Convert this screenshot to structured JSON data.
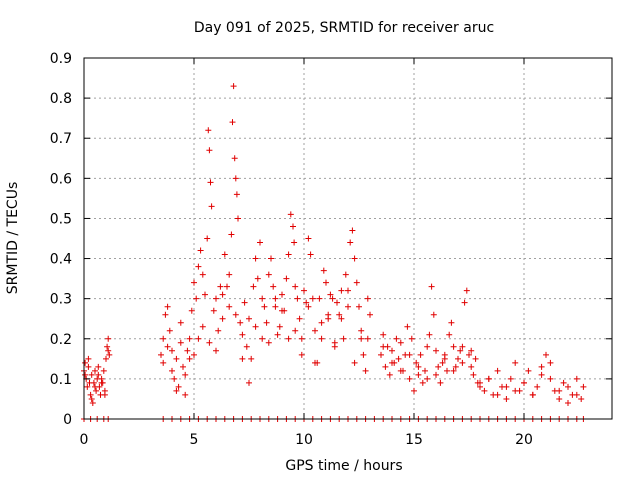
{
  "chart_data": {
    "type": "scatter",
    "title": "Day 091 of 2025, SRMTID for receiver aruc",
    "xlabel": "GPS time / hours",
    "ylabel": "SRMTID / TECUs",
    "xlim": [
      0,
      24
    ],
    "ylim": [
      0,
      0.9
    ],
    "xticks": [
      0,
      5,
      10,
      15,
      20
    ],
    "yticks": [
      0,
      0.1,
      0.2,
      0.3,
      0.4,
      0.5,
      0.6,
      0.7,
      0.8,
      0.9
    ],
    "xtick_labels": [
      "0",
      "5",
      "10",
      "15",
      "20"
    ],
    "ytick_labels": [
      "0",
      "0.1",
      "0.2",
      "0.3",
      "0.4",
      "0.5",
      "0.6",
      "0.7",
      "0.8",
      "0.9"
    ],
    "grid": true,
    "marker": "+",
    "color": "#e00000",
    "series": [
      {
        "name": "SRMTID",
        "x": [
          0.0,
          0.05,
          0.1,
          0.15,
          0.2,
          0.25,
          0.3,
          0.35,
          0.4,
          0.45,
          0.5,
          0.55,
          0.6,
          0.65,
          0.7,
          0.75,
          0.8,
          0.85,
          0.9,
          0.95,
          1.0,
          1.05,
          1.1,
          1.15,
          0.05,
          0.2,
          0.35,
          0.5,
          0.65,
          0.8,
          0.95,
          1.1,
          3.5,
          3.6,
          3.7,
          3.8,
          3.9,
          4.0,
          4.1,
          4.2,
          4.3,
          4.4,
          4.5,
          4.6,
          4.7,
          4.8,
          4.9,
          5.0,
          5.1,
          5.2,
          5.3,
          5.4,
          5.5,
          5.6,
          5.65,
          5.7,
          5.75,
          5.8,
          5.9,
          6.0,
          6.1,
          6.2,
          6.3,
          6.4,
          6.5,
          6.6,
          6.7,
          6.75,
          6.8,
          6.85,
          6.9,
          6.95,
          7.0,
          7.1,
          7.2,
          7.3,
          7.4,
          7.5,
          7.6,
          7.7,
          7.8,
          7.9,
          8.0,
          8.1,
          8.2,
          8.3,
          8.4,
          8.5,
          8.6,
          8.7,
          8.8,
          8.9,
          9.0,
          9.1,
          9.2,
          9.3,
          9.4,
          9.5,
          9.55,
          9.6,
          9.7,
          9.8,
          9.9,
          10.0,
          10.1,
          10.2,
          10.3,
          10.4,
          10.5,
          10.6,
          10.7,
          10.8,
          10.9,
          11.0,
          11.1,
          11.2,
          11.3,
          11.4,
          11.5,
          11.6,
          11.7,
          11.8,
          11.9,
          12.0,
          12.1,
          12.2,
          12.3,
          12.4,
          12.5,
          12.6,
          12.7,
          12.8,
          12.9,
          13.0,
          3.6,
          3.8,
          4.0,
          4.2,
          4.4,
          4.6,
          4.8,
          5.0,
          5.2,
          5.4,
          5.7,
          6.0,
          6.3,
          6.6,
          6.9,
          7.2,
          7.5,
          7.8,
          8.1,
          8.4,
          8.7,
          9.0,
          9.3,
          9.6,
          9.9,
          10.2,
          10.5,
          10.8,
          11.1,
          11.4,
          11.7,
          12.0,
          12.3,
          12.6,
          12.9,
          13.5,
          13.6,
          13.7,
          13.8,
          13.9,
          14.0,
          14.1,
          14.2,
          14.3,
          14.4,
          14.5,
          14.6,
          14.7,
          14.8,
          14.9,
          15.0,
          15.1,
          15.2,
          15.3,
          15.4,
          15.5,
          15.6,
          15.7,
          15.8,
          15.9,
          16.0,
          16.1,
          16.2,
          16.3,
          16.4,
          16.5,
          16.6,
          16.7,
          16.8,
          16.9,
          17.0,
          17.1,
          17.2,
          17.3,
          17.4,
          17.5,
          17.6,
          17.7,
          17.8,
          17.9,
          18.0,
          18.2,
          18.4,
          18.6,
          18.8,
          19.0,
          19.2,
          19.4,
          19.6,
          19.8,
          20.0,
          20.2,
          20.4,
          20.6,
          20.8,
          21.0,
          21.2,
          21.4,
          21.6,
          21.8,
          22.0,
          22.2,
          22.4,
          22.6,
          22.7,
          13.6,
          14.0,
          14.4,
          14.8,
          15.2,
          15.6,
          16.0,
          16.4,
          16.8,
          17.2,
          17.6,
          18.0,
          18.4,
          18.8,
          19.2,
          19.6,
          20.0,
          20.4,
          20.8,
          21.2,
          21.6,
          22.0,
          22.4,
          0.0,
          0.3,
          0.6,
          0.9,
          1.1,
          3.6,
          4.0,
          4.4,
          4.8,
          5.2,
          5.6,
          6.0,
          6.4,
          6.8,
          7.2,
          7.6,
          8.0,
          8.4,
          8.8,
          9.2,
          9.6,
          10.0,
          10.4,
          10.8,
          11.2,
          11.6,
          12.0,
          12.4,
          12.8,
          13.2,
          13.6,
          14.0,
          14.4,
          14.8,
          15.2,
          15.6,
          16.0,
          16.4,
          16.8,
          17.2,
          17.6,
          18.0,
          18.4,
          18.8,
          19.2,
          19.6,
          20.0,
          20.4,
          20.8,
          21.2,
          21.6,
          22.0,
          22.4,
          22.7
        ],
        "y": [
          0.12,
          0.14,
          0.1,
          0.08,
          0.15,
          0.09,
          0.06,
          0.11,
          0.04,
          0.09,
          0.12,
          0.07,
          0.1,
          0.13,
          0.08,
          0.06,
          0.1,
          0.09,
          0.12,
          0.07,
          0.15,
          0.18,
          0.2,
          0.16,
          0.11,
          0.13,
          0.05,
          0.08,
          0.11,
          0.09,
          0.06,
          0.17,
          0.16,
          0.2,
          0.26,
          0.28,
          0.22,
          0.12,
          0.1,
          0.15,
          0.08,
          0.24,
          0.13,
          0.06,
          0.17,
          0.2,
          0.27,
          0.34,
          0.3,
          0.38,
          0.42,
          0.36,
          0.31,
          0.45,
          0.72,
          0.67,
          0.59,
          0.53,
          0.27,
          0.3,
          0.22,
          0.33,
          0.25,
          0.41,
          0.33,
          0.28,
          0.46,
          0.74,
          0.83,
          0.65,
          0.6,
          0.56,
          0.5,
          0.24,
          0.21,
          0.29,
          0.18,
          0.25,
          0.15,
          0.33,
          0.4,
          0.35,
          0.44,
          0.3,
          0.28,
          0.24,
          0.36,
          0.4,
          0.33,
          0.28,
          0.21,
          0.23,
          0.31,
          0.27,
          0.35,
          0.41,
          0.51,
          0.48,
          0.44,
          0.33,
          0.3,
          0.25,
          0.2,
          0.32,
          0.29,
          0.45,
          0.41,
          0.3,
          0.22,
          0.14,
          0.3,
          0.2,
          0.37,
          0.34,
          0.25,
          0.31,
          0.3,
          0.19,
          0.29,
          0.26,
          0.25,
          0.2,
          0.36,
          0.32,
          0.44,
          0.47,
          0.4,
          0.34,
          0.28,
          0.22,
          0.16,
          0.12,
          0.3,
          0.26,
          0.14,
          0.18,
          0.17,
          0.07,
          0.19,
          0.11,
          0.15,
          0.16,
          0.2,
          0.23,
          0.19,
          0.17,
          0.31,
          0.36,
          0.26,
          0.15,
          0.09,
          0.23,
          0.2,
          0.19,
          0.3,
          0.27,
          0.2,
          0.22,
          0.16,
          0.28,
          0.14,
          0.24,
          0.26,
          0.18,
          0.32,
          0.28,
          0.14,
          0.2,
          0.2,
          0.16,
          0.21,
          0.13,
          0.18,
          0.11,
          0.17,
          0.14,
          0.2,
          0.15,
          0.19,
          0.12,
          0.16,
          0.23,
          0.1,
          0.2,
          0.07,
          0.14,
          0.11,
          0.16,
          0.09,
          0.12,
          0.18,
          0.21,
          0.33,
          0.26,
          0.17,
          0.13,
          0.09,
          0.14,
          0.16,
          0.12,
          0.21,
          0.24,
          0.18,
          0.13,
          0.15,
          0.17,
          0.14,
          0.29,
          0.32,
          0.16,
          0.13,
          0.11,
          0.15,
          0.09,
          0.08,
          0.07,
          0.1,
          0.06,
          0.12,
          0.08,
          0.05,
          0.1,
          0.14,
          0.07,
          0.09,
          0.12,
          0.06,
          0.08,
          0.11,
          0.16,
          0.14,
          0.07,
          0.05,
          0.09,
          0.08,
          0.06,
          0.1,
          0.05,
          0.08,
          0.18,
          0.14,
          0.12,
          0.16,
          0.13,
          0.1,
          0.11,
          0.15,
          0.12,
          0.18,
          0.17,
          0.09,
          0.1,
          0.06,
          0.08,
          0.07,
          0.09,
          0.06,
          0.13,
          0.1,
          0.07,
          0.04,
          0.06,
          0.0,
          0.0,
          0.0,
          0.0,
          0.0,
          0.0,
          0.0,
          0.0,
          0.0,
          0.0,
          0.0,
          0.0,
          0.0,
          0.0,
          0.0,
          0.0,
          0.0,
          0.0,
          0.0,
          0.0,
          0.0,
          0.0,
          0.0,
          0.0,
          0.0,
          0.0,
          0.0,
          0.0,
          0.0,
          0.0,
          0.0,
          0.0,
          0.0,
          0.0,
          0.0,
          0.0,
          0.0,
          0.0,
          0.0,
          0.0,
          0.0,
          0.0,
          0.0,
          0.0,
          0.0,
          0.0,
          0.0,
          0.0,
          0.0,
          0.0,
          0.0,
          0.0,
          0.0,
          0.0
        ]
      }
    ]
  }
}
